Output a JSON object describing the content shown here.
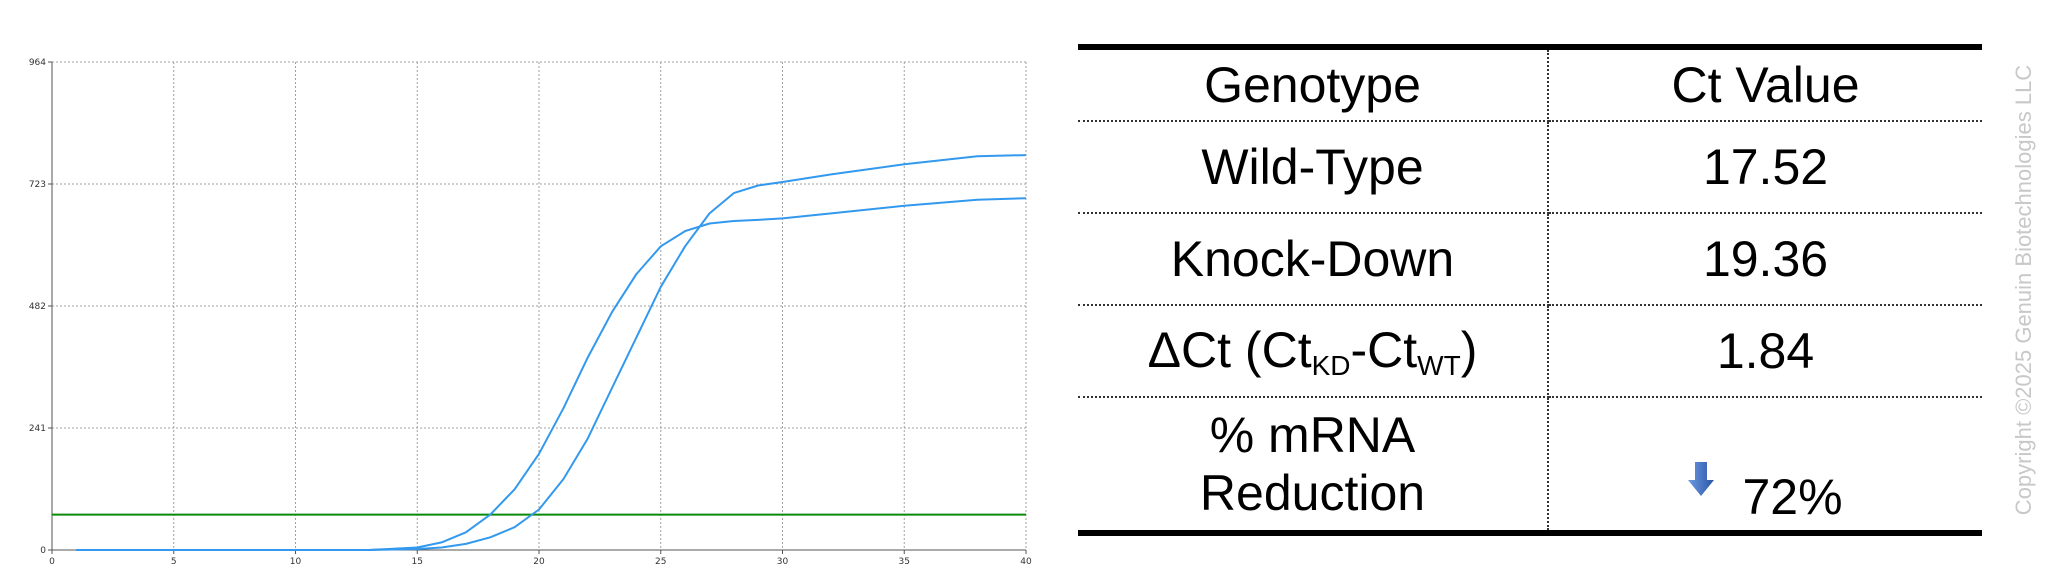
{
  "chart_data": {
    "type": "line",
    "xlim": [
      0,
      40
    ],
    "ylim": [
      0,
      964
    ],
    "x_ticks": [
      0,
      5,
      10,
      15,
      20,
      25,
      30,
      35,
      40
    ],
    "y_ticks": [
      0,
      241,
      482,
      723,
      964
    ],
    "grid": true,
    "threshold": 70,
    "series": [
      {
        "x": [
          1,
          5,
          10,
          13,
          15,
          16,
          17,
          18,
          19,
          20,
          21,
          22,
          23,
          24,
          25,
          26,
          27,
          28,
          29,
          30,
          32,
          35,
          38,
          40
        ],
        "values": [
          0,
          0,
          0,
          0,
          5,
          15,
          35,
          70,
          120,
          190,
          280,
          380,
          470,
          545,
          600,
          630,
          645,
          650,
          652,
          655,
          665,
          680,
          692,
          695
        ]
      },
      {
        "x": [
          1,
          5,
          10,
          13,
          15,
          16,
          17,
          18,
          19,
          20,
          21,
          22,
          23,
          24,
          25,
          26,
          27,
          28,
          29,
          30,
          32,
          35,
          38,
          40
        ],
        "values": [
          0,
          0,
          0,
          0,
          2,
          5,
          12,
          25,
          45,
          80,
          140,
          220,
          320,
          420,
          520,
          600,
          665,
          705,
          720,
          727,
          742,
          762,
          778,
          780
        ]
      }
    ]
  },
  "table": {
    "header": {
      "col1": "Genotype",
      "col2": "Ct Value"
    },
    "rows": [
      {
        "label": "Wild-Type",
        "value": "17.52"
      },
      {
        "label": "Knock-Down",
        "value": "19.36"
      }
    ],
    "delta": {
      "prefix": "ΔCt (Ct",
      "sub1": "KD",
      "mid": "-Ct",
      "sub2": "WT",
      "suffix": ")",
      "value": "1.84"
    },
    "reduction": {
      "line1": "% mRNA",
      "line2": "Reduction",
      "value": "72%",
      "arrow_icon": "down-arrow-icon",
      "arrow_color": "#3a6bc5"
    }
  },
  "copyright": "Copyright ©2025 Genuin Biotechnologies LLC",
  "colors": {
    "curve": "#3399ee",
    "threshold": "#0a8a0a",
    "grid": "#a0a0a0",
    "watermark": "#c8c8c8"
  }
}
